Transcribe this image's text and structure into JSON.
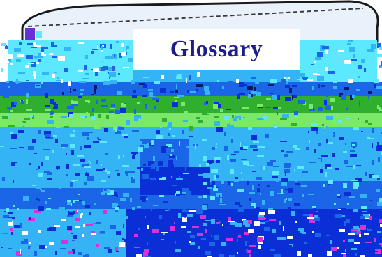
{
  "title": {
    "text": "Glossary"
  },
  "colors": {
    "title_text": "#1c1c8a",
    "title_box": "#ffffff",
    "deep_blue": "#0a2fd6",
    "mid_blue": "#1a66e6",
    "light_blue": "#35b4f5",
    "cyan": "#5ce8ff",
    "green": "#2fae2f",
    "lime": "#7be86a",
    "dark_navy": "#0a1a6a",
    "magenta": "#d633d6",
    "white": "#ffffff",
    "pouch_outline": "#1a1a1a"
  },
  "icons": {
    "background": "pixelated-fabric-image-icon",
    "pouch": "zipper-pouch-icon"
  }
}
